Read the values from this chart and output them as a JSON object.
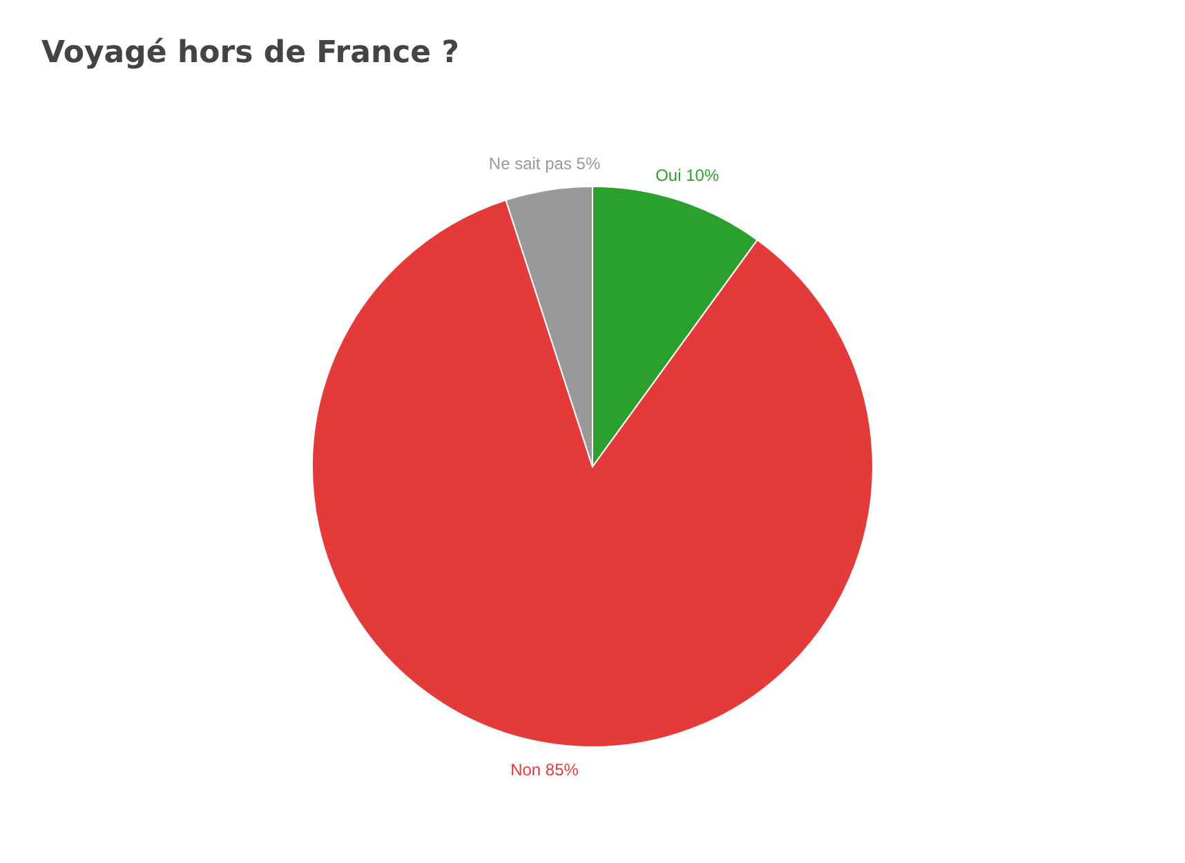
{
  "chart_data": {
    "type": "pie",
    "title": "Voyagé hors de France ?",
    "categories": [
      "Oui",
      "Non",
      "Ne sait pas"
    ],
    "values": [
      10,
      85,
      5
    ],
    "colors": [
      "#2ca02c",
      "#e53a3a",
      "#999999"
    ],
    "value_labels": [
      "10%",
      "85%",
      "5%"
    ]
  }
}
